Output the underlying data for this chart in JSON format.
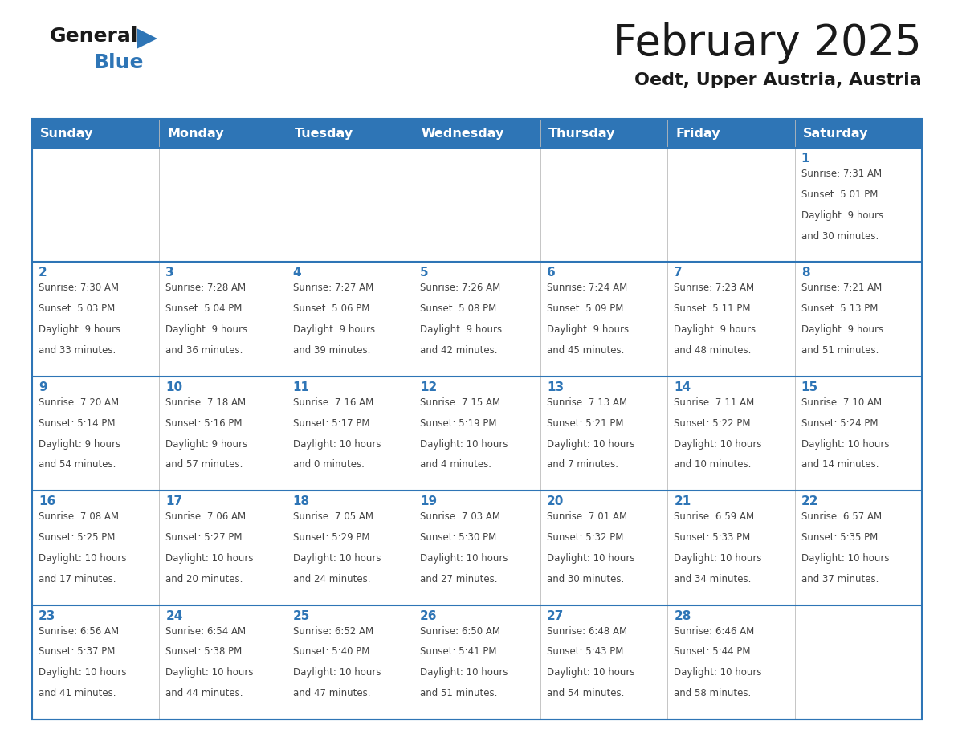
{
  "title": "February 2025",
  "subtitle": "Oedt, Upper Austria, Austria",
  "header_bg": "#2E75B6",
  "header_text_color": "#FFFFFF",
  "day_names": [
    "Sunday",
    "Monday",
    "Tuesday",
    "Wednesday",
    "Thursday",
    "Friday",
    "Saturday"
  ],
  "date_color": "#2E75B6",
  "text_color": "#444444",
  "line_color": "#2E75B6",
  "calendar": [
    [
      null,
      null,
      null,
      null,
      null,
      null,
      {
        "day": 1,
        "sunrise": "7:31 AM",
        "sunset": "5:01 PM",
        "daylight": "9 hours and 30 minutes"
      }
    ],
    [
      {
        "day": 2,
        "sunrise": "7:30 AM",
        "sunset": "5:03 PM",
        "daylight": "9 hours and 33 minutes"
      },
      {
        "day": 3,
        "sunrise": "7:28 AM",
        "sunset": "5:04 PM",
        "daylight": "9 hours and 36 minutes"
      },
      {
        "day": 4,
        "sunrise": "7:27 AM",
        "sunset": "5:06 PM",
        "daylight": "9 hours and 39 minutes"
      },
      {
        "day": 5,
        "sunrise": "7:26 AM",
        "sunset": "5:08 PM",
        "daylight": "9 hours and 42 minutes"
      },
      {
        "day": 6,
        "sunrise": "7:24 AM",
        "sunset": "5:09 PM",
        "daylight": "9 hours and 45 minutes"
      },
      {
        "day": 7,
        "sunrise": "7:23 AM",
        "sunset": "5:11 PM",
        "daylight": "9 hours and 48 minutes"
      },
      {
        "day": 8,
        "sunrise": "7:21 AM",
        "sunset": "5:13 PM",
        "daylight": "9 hours and 51 minutes"
      }
    ],
    [
      {
        "day": 9,
        "sunrise": "7:20 AM",
        "sunset": "5:14 PM",
        "daylight": "9 hours and 54 minutes"
      },
      {
        "day": 10,
        "sunrise": "7:18 AM",
        "sunset": "5:16 PM",
        "daylight": "9 hours and 57 minutes"
      },
      {
        "day": 11,
        "sunrise": "7:16 AM",
        "sunset": "5:17 PM",
        "daylight": "10 hours and 0 minutes"
      },
      {
        "day": 12,
        "sunrise": "7:15 AM",
        "sunset": "5:19 PM",
        "daylight": "10 hours and 4 minutes"
      },
      {
        "day": 13,
        "sunrise": "7:13 AM",
        "sunset": "5:21 PM",
        "daylight": "10 hours and 7 minutes"
      },
      {
        "day": 14,
        "sunrise": "7:11 AM",
        "sunset": "5:22 PM",
        "daylight": "10 hours and 10 minutes"
      },
      {
        "day": 15,
        "sunrise": "7:10 AM",
        "sunset": "5:24 PM",
        "daylight": "10 hours and 14 minutes"
      }
    ],
    [
      {
        "day": 16,
        "sunrise": "7:08 AM",
        "sunset": "5:25 PM",
        "daylight": "10 hours and 17 minutes"
      },
      {
        "day": 17,
        "sunrise": "7:06 AM",
        "sunset": "5:27 PM",
        "daylight": "10 hours and 20 minutes"
      },
      {
        "day": 18,
        "sunrise": "7:05 AM",
        "sunset": "5:29 PM",
        "daylight": "10 hours and 24 minutes"
      },
      {
        "day": 19,
        "sunrise": "7:03 AM",
        "sunset": "5:30 PM",
        "daylight": "10 hours and 27 minutes"
      },
      {
        "day": 20,
        "sunrise": "7:01 AM",
        "sunset": "5:32 PM",
        "daylight": "10 hours and 30 minutes"
      },
      {
        "day": 21,
        "sunrise": "6:59 AM",
        "sunset": "5:33 PM",
        "daylight": "10 hours and 34 minutes"
      },
      {
        "day": 22,
        "sunrise": "6:57 AM",
        "sunset": "5:35 PM",
        "daylight": "10 hours and 37 minutes"
      }
    ],
    [
      {
        "day": 23,
        "sunrise": "6:56 AM",
        "sunset": "5:37 PM",
        "daylight": "10 hours and 41 minutes"
      },
      {
        "day": 24,
        "sunrise": "6:54 AM",
        "sunset": "5:38 PM",
        "daylight": "10 hours and 44 minutes"
      },
      {
        "day": 25,
        "sunrise": "6:52 AM",
        "sunset": "5:40 PM",
        "daylight": "10 hours and 47 minutes"
      },
      {
        "day": 26,
        "sunrise": "6:50 AM",
        "sunset": "5:41 PM",
        "daylight": "10 hours and 51 minutes"
      },
      {
        "day": 27,
        "sunrise": "6:48 AM",
        "sunset": "5:43 PM",
        "daylight": "10 hours and 54 minutes"
      },
      {
        "day": 28,
        "sunrise": "6:46 AM",
        "sunset": "5:44 PM",
        "daylight": "10 hours and 58 minutes"
      },
      null
    ]
  ]
}
